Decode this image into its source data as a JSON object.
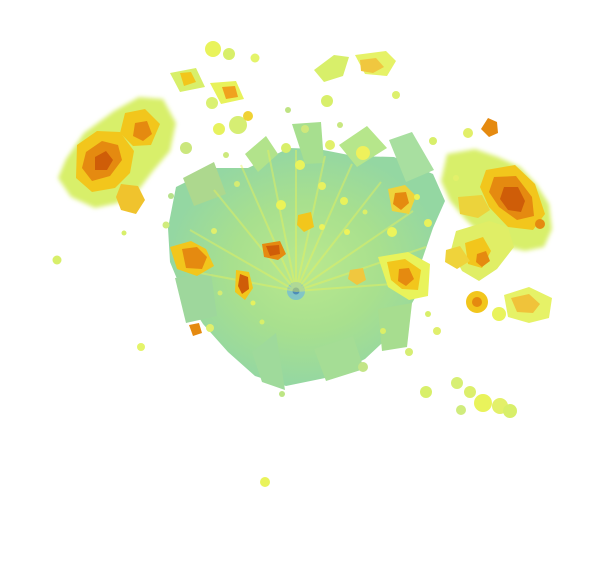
{
  "image": {
    "kind": "radar-reflectivity-plot",
    "background": "#ffffff",
    "palette": {
      "low": "#a9e28a",
      "low_blue": "#92d6a0",
      "mid_low": "#d8ef6a",
      "mid": "#f0f04a",
      "mid_high": "#f2c61c",
      "high": "#e58a10",
      "peak": "#cf5d08",
      "center": "#4d8db8"
    }
  }
}
